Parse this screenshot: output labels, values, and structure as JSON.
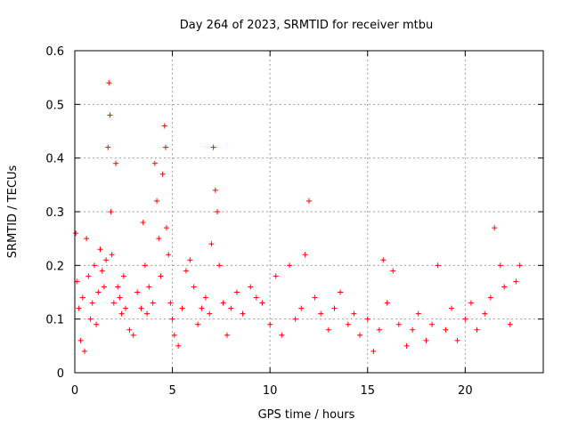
{
  "chart_data": {
    "type": "scatter",
    "title": "Day 264 of 2023, SRMTID for receiver mtbu",
    "xlabel": "GPS time / hours",
    "ylabel": "SRMTID / TECUs",
    "xlim": [
      0,
      24
    ],
    "ylim": [
      0,
      0.6
    ],
    "x_ticks": [
      0,
      5,
      10,
      15,
      20
    ],
    "x_tick_labels": [
      "0",
      "5",
      "10",
      "15",
      "20"
    ],
    "y_ticks": [
      0,
      0.1,
      0.2,
      0.3,
      0.4,
      0.5,
      0.6
    ],
    "y_tick_labels": [
      "0",
      "0.1",
      "0.2",
      "0.3",
      "0.4",
      "0.5",
      "0.6"
    ],
    "grid": true,
    "marker": "+",
    "color": "#ff0000",
    "x_range_of_data": [
      0,
      22.8
    ],
    "series": [
      {
        "name": "SRMTID",
        "x": [
          0.05,
          0.1,
          0.2,
          0.3,
          0.4,
          0.5,
          0.6,
          0.7,
          0.8,
          0.9,
          1.0,
          1.1,
          1.2,
          1.3,
          1.4,
          1.5,
          1.6,
          1.7,
          1.75,
          1.8,
          1.85,
          1.9,
          2.0,
          2.1,
          2.2,
          2.3,
          2.4,
          2.5,
          2.6,
          2.8,
          3.0,
          3.2,
          3.4,
          3.5,
          3.6,
          3.7,
          3.8,
          4.0,
          4.1,
          4.2,
          4.3,
          4.4,
          4.5,
          4.6,
          4.65,
          4.7,
          4.8,
          4.9,
          5.0,
          5.1,
          5.3,
          5.5,
          5.7,
          5.9,
          6.1,
          6.3,
          6.5,
          6.7,
          6.9,
          7.0,
          7.1,
          7.2,
          7.3,
          7.4,
          7.6,
          7.8,
          8.0,
          8.3,
          8.6,
          9.0,
          9.3,
          9.6,
          10.0,
          10.3,
          10.6,
          11.0,
          11.3,
          11.6,
          11.8,
          12.0,
          12.3,
          12.6,
          13.0,
          13.3,
          13.6,
          14.0,
          14.3,
          14.6,
          15.0,
          15.3,
          15.6,
          15.8,
          16.0,
          16.3,
          16.6,
          17.0,
          17.3,
          17.6,
          18.0,
          18.3,
          18.6,
          19.0,
          19.3,
          19.6,
          20.0,
          20.3,
          20.6,
          21.0,
          21.3,
          21.5,
          21.8,
          22.0,
          22.3,
          22.6,
          22.8
        ],
        "y": [
          0.26,
          0.17,
          0.12,
          0.06,
          0.14,
          0.04,
          0.25,
          0.18,
          0.1,
          0.13,
          0.2,
          0.09,
          0.15,
          0.23,
          0.19,
          0.16,
          0.21,
          0.42,
          0.54,
          0.48,
          0.3,
          0.22,
          0.13,
          0.39,
          0.16,
          0.14,
          0.11,
          0.18,
          0.12,
          0.08,
          0.07,
          0.15,
          0.12,
          0.28,
          0.2,
          0.11,
          0.16,
          0.13,
          0.39,
          0.32,
          0.25,
          0.18,
          0.37,
          0.46,
          0.42,
          0.27,
          0.22,
          0.13,
          0.1,
          0.07,
          0.05,
          0.12,
          0.19,
          0.21,
          0.16,
          0.09,
          0.12,
          0.14,
          0.11,
          0.24,
          0.42,
          0.34,
          0.3,
          0.2,
          0.13,
          0.07,
          0.12,
          0.15,
          0.11,
          0.16,
          0.14,
          0.13,
          0.09,
          0.18,
          0.07,
          0.2,
          0.1,
          0.12,
          0.22,
          0.32,
          0.14,
          0.11,
          0.08,
          0.12,
          0.15,
          0.09,
          0.11,
          0.07,
          0.1,
          0.04,
          0.08,
          0.21,
          0.13,
          0.19,
          0.09,
          0.05,
          0.08,
          0.11,
          0.06,
          0.09,
          0.2,
          0.08,
          0.12,
          0.06,
          0.1,
          0.13,
          0.08,
          0.11,
          0.14,
          0.27,
          0.2,
          0.16,
          0.09,
          0.17,
          0.2
        ]
      }
    ]
  }
}
